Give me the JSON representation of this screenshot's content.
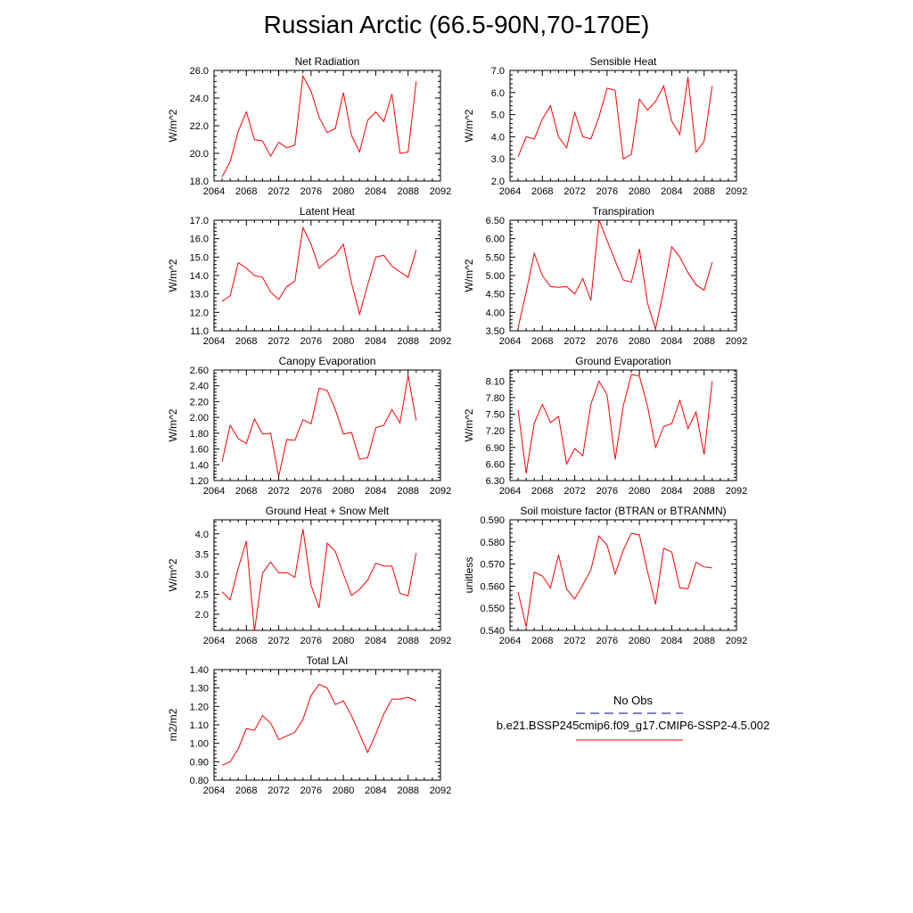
{
  "title": "Russian Arctic (66.5-90N,70-170E)",
  "colors": {
    "line": "#ff0000",
    "obs": "#3333aa",
    "axis": "#000000"
  },
  "legend": {
    "obs_label": "No Obs",
    "case_label": "b.e21.BSSP245cmip6.f09_g17.CMIP6-SSP2-4.5.002"
  },
  "chart_data": [
    {
      "type": "line",
      "title": "Net Radiation",
      "xlabel": "",
      "ylabel": "W/m^2",
      "xlim": [
        2064,
        2092
      ],
      "ylim": [
        18.0,
        26.0
      ],
      "xticks": [
        "2064",
        "2068",
        "2072",
        "2076",
        "2080",
        "2084",
        "2088",
        "2092"
      ],
      "yticks": [
        "18.0",
        "20.0",
        "22.0",
        "24.0",
        "26.0"
      ],
      "x": [
        2065,
        2066,
        2067,
        2068,
        2069,
        2070,
        2071,
        2072,
        2073,
        2074,
        2075,
        2076,
        2077,
        2078,
        2079,
        2080,
        2081,
        2082,
        2083,
        2084,
        2085,
        2086,
        2087,
        2088,
        2089
      ],
      "series": [
        {
          "values": [
            18.3,
            19.4,
            21.6,
            23.0,
            21.0,
            20.9,
            19.8,
            20.8,
            20.4,
            20.6,
            25.6,
            24.5,
            22.6,
            21.5,
            21.8,
            24.4,
            21.3,
            20.1,
            22.4,
            23.0,
            22.3,
            24.3,
            20.0,
            20.1,
            25.2
          ]
        }
      ]
    },
    {
      "type": "line",
      "title": "Sensible Heat",
      "xlabel": "",
      "ylabel": "W/m^2",
      "xlim": [
        2064,
        2092
      ],
      "ylim": [
        2.0,
        7.0
      ],
      "xticks": [
        "2064",
        "2068",
        "2072",
        "2076",
        "2080",
        "2084",
        "2088",
        "2092"
      ],
      "yticks": [
        "2.0",
        "3.0",
        "4.0",
        "5.0",
        "6.0",
        "7.0"
      ],
      "x": [
        2065,
        2066,
        2067,
        2068,
        2069,
        2070,
        2071,
        2072,
        2073,
        2074,
        2075,
        2076,
        2077,
        2078,
        2079,
        2080,
        2081,
        2082,
        2083,
        2084,
        2085,
        2086,
        2087,
        2088,
        2089
      ],
      "series": [
        {
          "values": [
            3.1,
            4.0,
            3.9,
            4.8,
            5.4,
            4.0,
            3.5,
            5.1,
            4.0,
            3.9,
            4.9,
            6.2,
            6.1,
            3.0,
            3.2,
            5.7,
            5.2,
            5.6,
            6.3,
            4.7,
            4.1,
            6.7,
            3.3,
            3.8,
            6.3
          ]
        }
      ]
    },
    {
      "type": "line",
      "title": "Latent Heat",
      "xlabel": "",
      "ylabel": "W/m^2",
      "xlim": [
        2064,
        2092
      ],
      "ylim": [
        11.0,
        17.0
      ],
      "xticks": [
        "2064",
        "2068",
        "2072",
        "2076",
        "2080",
        "2084",
        "2088",
        "2092"
      ],
      "yticks": [
        "11.0",
        "12.0",
        "13.0",
        "14.0",
        "15.0",
        "16.0",
        "17.0"
      ],
      "x": [
        2065,
        2066,
        2067,
        2068,
        2069,
        2070,
        2071,
        2072,
        2073,
        2074,
        2075,
        2076,
        2077,
        2078,
        2079,
        2080,
        2081,
        2082,
        2083,
        2084,
        2085,
        2086,
        2087,
        2088,
        2089
      ],
      "series": [
        {
          "values": [
            12.6,
            12.9,
            14.7,
            14.4,
            14.0,
            13.9,
            13.1,
            12.7,
            13.4,
            13.7,
            16.6,
            15.7,
            14.4,
            14.8,
            15.1,
            15.7,
            13.6,
            11.9,
            13.5,
            15.0,
            15.1,
            14.5,
            14.2,
            13.9,
            15.4
          ]
        }
      ]
    },
    {
      "type": "line",
      "title": "Transpiration",
      "xlabel": "",
      "ylabel": "W/m^2",
      "xlim": [
        2064,
        2092
      ],
      "ylim": [
        3.5,
        6.5
      ],
      "xticks": [
        "2064",
        "2068",
        "2072",
        "2076",
        "2080",
        "2084",
        "2088",
        "2092"
      ],
      "yticks": [
        "3.50",
        "4.00",
        "4.50",
        "5.00",
        "5.50",
        "6.00",
        "6.50"
      ],
      "x": [
        2065,
        2066,
        2067,
        2068,
        2069,
        2070,
        2071,
        2072,
        2073,
        2074,
        2075,
        2076,
        2077,
        2078,
        2079,
        2080,
        2081,
        2082,
        2083,
        2084,
        2085,
        2086,
        2087,
        2088,
        2089
      ],
      "series": [
        {
          "values": [
            3.58,
            4.55,
            5.6,
            5.0,
            4.7,
            4.68,
            4.7,
            4.5,
            4.92,
            4.32,
            6.52,
            5.95,
            5.4,
            4.88,
            4.82,
            5.72,
            4.25,
            3.55,
            4.6,
            5.78,
            5.5,
            5.08,
            4.75,
            4.6,
            5.36
          ]
        }
      ]
    },
    {
      "type": "line",
      "title": "Canopy Evaporation",
      "xlabel": "",
      "ylabel": "W/m^2",
      "xlim": [
        2064,
        2092
      ],
      "ylim": [
        1.2,
        2.6
      ],
      "xticks": [
        "2064",
        "2068",
        "2072",
        "2076",
        "2080",
        "2084",
        "2088",
        "2092"
      ],
      "yticks": [
        "1.20",
        "1.40",
        "1.60",
        "1.80",
        "2.00",
        "2.20",
        "2.40",
        "2.60"
      ],
      "x": [
        2065,
        2066,
        2067,
        2068,
        2069,
        2070,
        2071,
        2072,
        2073,
        2074,
        2075,
        2076,
        2077,
        2078,
        2079,
        2080,
        2081,
        2082,
        2083,
        2084,
        2085,
        2086,
        2087,
        2088,
        2089
      ],
      "series": [
        {
          "values": [
            1.44,
            1.9,
            1.73,
            1.67,
            1.98,
            1.79,
            1.8,
            1.25,
            1.72,
            1.71,
            1.97,
            1.92,
            2.37,
            2.34,
            2.1,
            1.79,
            1.81,
            1.47,
            1.49,
            1.87,
            1.9,
            2.1,
            1.93,
            2.53,
            1.96
          ]
        }
      ]
    },
    {
      "type": "line",
      "title": "Ground Evaporation",
      "xlabel": "",
      "ylabel": "W/m^2",
      "xlim": [
        2064,
        2092
      ],
      "ylim": [
        6.3,
        8.3
      ],
      "xticks": [
        "2064",
        "2068",
        "2072",
        "2076",
        "2080",
        "2084",
        "2088",
        "2092"
      ],
      "yticks": [
        "6.30",
        "6.60",
        "6.90",
        "7.20",
        "7.50",
        "7.80",
        "8.10"
      ],
      "x": [
        2065,
        2066,
        2067,
        2068,
        2069,
        2070,
        2071,
        2072,
        2073,
        2074,
        2075,
        2076,
        2077,
        2078,
        2079,
        2080,
        2081,
        2082,
        2083,
        2084,
        2085,
        2086,
        2087,
        2088,
        2089
      ],
      "series": [
        {
          "values": [
            7.58,
            6.43,
            7.34,
            7.68,
            7.35,
            7.46,
            6.6,
            6.88,
            6.75,
            7.68,
            8.1,
            7.85,
            6.68,
            7.65,
            8.22,
            8.19,
            7.65,
            6.9,
            7.28,
            7.33,
            7.75,
            7.24,
            7.54,
            6.77,
            8.1
          ]
        }
      ]
    },
    {
      "type": "line",
      "title": "Ground Heat + Snow Melt",
      "xlabel": "",
      "ylabel": "W/m^2",
      "xlim": [
        2064,
        2092
      ],
      "ylim": [
        1.6,
        4.35
      ],
      "xticks": [
        "2064",
        "2068",
        "2072",
        "2076",
        "2080",
        "2084",
        "2088",
        "2092"
      ],
      "yticks": [
        "2.0",
        "2.5",
        "3.0",
        "3.5",
        "4.0"
      ],
      "x": [
        2065,
        2066,
        2067,
        2068,
        2069,
        2070,
        2071,
        2072,
        2073,
        2074,
        2075,
        2076,
        2077,
        2078,
        2079,
        2080,
        2081,
        2082,
        2083,
        2084,
        2085,
        2086,
        2087,
        2088,
        2089
      ],
      "series": [
        {
          "values": [
            2.56,
            2.36,
            3.15,
            3.82,
            1.58,
            3.02,
            3.3,
            3.03,
            3.04,
            2.92,
            4.12,
            2.72,
            2.16,
            3.77,
            3.56,
            3.0,
            2.47,
            2.62,
            2.85,
            3.27,
            3.2,
            3.2,
            2.52,
            2.46,
            3.53
          ]
        }
      ]
    },
    {
      "type": "line",
      "title": "Soil moisture factor (BTRAN or BTRANMN)",
      "xlabel": "",
      "ylabel": "unitless",
      "xlim": [
        2064,
        2092
      ],
      "ylim": [
        0.54,
        0.59
      ],
      "xticks": [
        "2064",
        "2068",
        "2072",
        "2076",
        "2080",
        "2084",
        "2088",
        "2092"
      ],
      "yticks": [
        "0.540",
        "0.550",
        "0.560",
        "0.570",
        "0.580",
        "0.590"
      ],
      "x": [
        2065,
        2066,
        2067,
        2068,
        2069,
        2070,
        2071,
        2072,
        2073,
        2074,
        2075,
        2076,
        2077,
        2078,
        2079,
        2080,
        2081,
        2082,
        2083,
        2084,
        2085,
        2086,
        2087,
        2088,
        2089
      ],
      "series": [
        {
          "values": [
            0.5574,
            0.5416,
            0.5663,
            0.5646,
            0.5592,
            0.5741,
            0.5587,
            0.5542,
            0.5605,
            0.5674,
            0.5827,
            0.5785,
            0.5655,
            0.5762,
            0.5839,
            0.5832,
            0.5667,
            0.5518,
            0.5771,
            0.5754,
            0.5592,
            0.5588,
            0.5708,
            0.5687,
            0.5683
          ]
        }
      ]
    },
    {
      "type": "line",
      "title": "Total LAI",
      "xlabel": "",
      "ylabel": "m2/m2",
      "xlim": [
        2064,
        2092
      ],
      "ylim": [
        0.8,
        1.4
      ],
      "xticks": [
        "2064",
        "2068",
        "2072",
        "2076",
        "2080",
        "2084",
        "2088",
        "2092"
      ],
      "yticks": [
        "0.80",
        "0.90",
        "1.00",
        "1.10",
        "1.20",
        "1.30",
        "1.40"
      ],
      "x": [
        2065,
        2066,
        2067,
        2068,
        2069,
        2070,
        2071,
        2072,
        2073,
        2074,
        2075,
        2076,
        2077,
        2078,
        2079,
        2080,
        2081,
        2082,
        2083,
        2084,
        2085,
        2086,
        2087,
        2088,
        2089
      ],
      "series": [
        {
          "values": [
            0.88,
            0.9,
            0.97,
            1.08,
            1.07,
            1.15,
            1.11,
            1.02,
            1.04,
            1.06,
            1.13,
            1.26,
            1.32,
            1.3,
            1.21,
            1.23,
            1.15,
            1.05,
            0.95,
            1.05,
            1.16,
            1.24,
            1.24,
            1.25,
            1.23
          ]
        }
      ]
    }
  ]
}
